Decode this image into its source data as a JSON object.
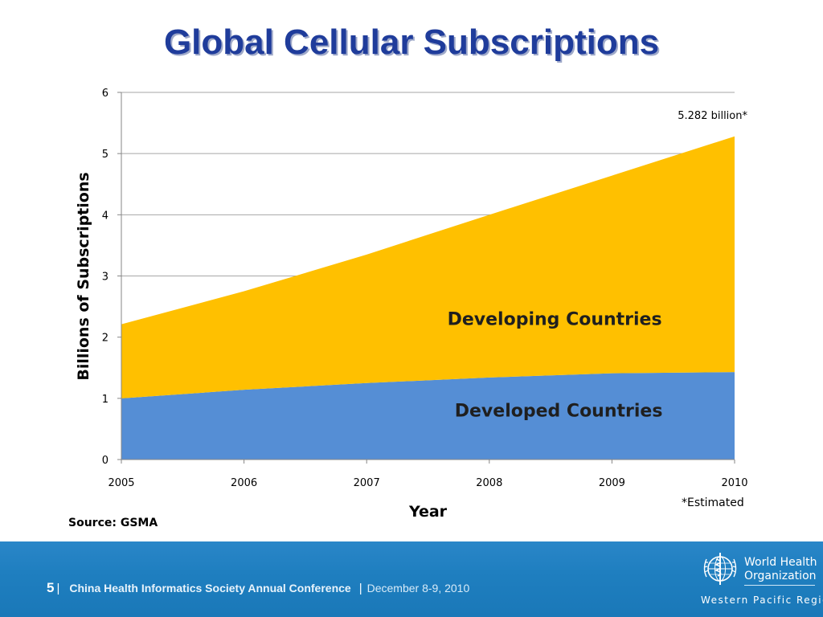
{
  "slide": {
    "title": "Global Cellular Subscriptions",
    "source": "Source: GSMA",
    "estimated_note": "*Estimated"
  },
  "chart_data": {
    "type": "area",
    "stacked": true,
    "x": [
      2005,
      2006,
      2007,
      2008,
      2009,
      2010
    ],
    "series": [
      {
        "name": "Developed Countries",
        "values": [
          1.0,
          1.14,
          1.25,
          1.34,
          1.41,
          1.43
        ],
        "color": "#558ed5"
      },
      {
        "name": "Developing Countries",
        "values": [
          1.21,
          1.61,
          2.1,
          2.66,
          3.23,
          3.852
        ],
        "color": "#ffc000"
      }
    ],
    "totals": [
      2.21,
      2.75,
      3.35,
      4.0,
      4.64,
      5.282
    ],
    "annotation": "5.282 billion*",
    "xlabel": "Year",
    "ylabel": "Billions of Subscriptions",
    "yticks": [
      0,
      1,
      2,
      3,
      4,
      5,
      6
    ],
    "xticks": [
      "2005",
      "2006",
      "2007",
      "2008",
      "2009",
      "2010"
    ],
    "ylim": [
      0,
      6
    ],
    "grid": "horizontal",
    "legend": "none"
  },
  "footer": {
    "page_number": "5",
    "separator": "|",
    "conference": "China Health Informatics Society Annual Conference",
    "date": "December 8-9, 2010",
    "org_line1": "World Health",
    "org_line2": "Organization",
    "region": "Western Pacific Region"
  },
  "colors": {
    "title": "#1f3c9b",
    "footer_bg": "#1f7fc0",
    "developed": "#558ed5",
    "developing": "#ffc000"
  }
}
